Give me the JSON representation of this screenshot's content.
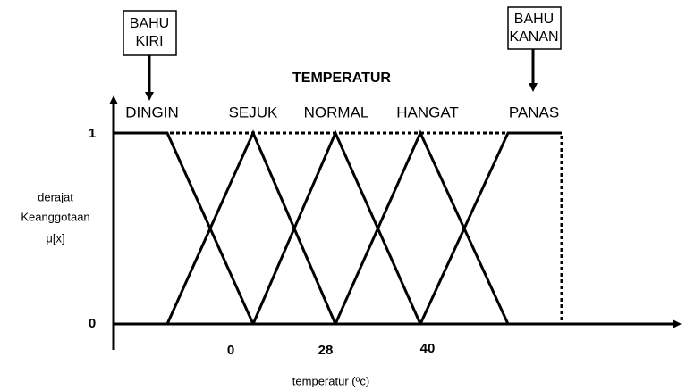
{
  "title": "TEMPERATUR",
  "callouts": [
    {
      "lines": [
        "BAHU",
        "KIRI"
      ]
    },
    {
      "lines": [
        "BAHU",
        "KANAN"
      ]
    }
  ],
  "sets": [
    "DINGIN",
    "SEJUK",
    "NORMAL",
    "HANGAT",
    "PANAS"
  ],
  "y_axis": {
    "label": [
      "derajat",
      "Keanggotaan",
      "μ[x]"
    ],
    "ticks": [
      "1",
      "0"
    ]
  },
  "x_axis": {
    "label": "temperatur (ºc)",
    "ticks": [
      "0",
      "28",
      "40"
    ]
  }
}
